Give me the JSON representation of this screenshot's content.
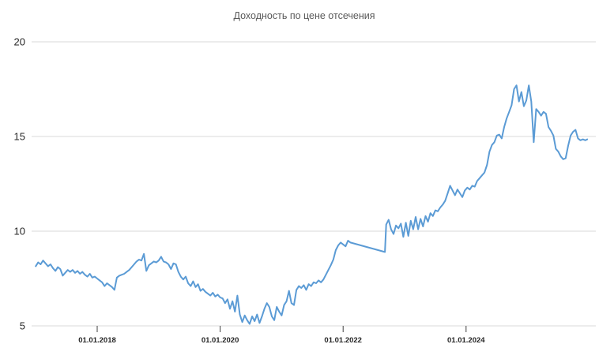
{
  "chart_data": {
    "type": "line",
    "title": "Доходность по цене отсечения",
    "xlabel": "",
    "ylabel": "",
    "ylim": [
      5,
      20
    ],
    "xlim": [
      2016.97,
      2026.1
    ],
    "grid": "horizontal",
    "legend": "none",
    "colors": {
      "line": "#5B9BD5",
      "title_text": "#595959",
      "axis_text": "#262626",
      "gridline": "#d9d9d9",
      "tickmark": "#404040",
      "background": "#ffffff"
    },
    "y_ticks": [
      {
        "value": 5,
        "label": "5"
      },
      {
        "value": 10,
        "label": "10"
      },
      {
        "value": 15,
        "label": "15"
      },
      {
        "value": 20,
        "label": "20"
      }
    ],
    "x_ticks": [
      {
        "value": 2018,
        "label": "01.01.2018"
      },
      {
        "value": 2020,
        "label": "01.01.2020"
      },
      {
        "value": 2022,
        "label": "01.01.2022"
      },
      {
        "value": 2024,
        "label": "01.01.2024"
      }
    ],
    "series": [
      {
        "name": "Доходность по цене отсечения",
        "x_format": "decimal_year",
        "points": [
          [
            2017.0,
            8.15
          ],
          [
            2017.04,
            8.35
          ],
          [
            2017.08,
            8.25
          ],
          [
            2017.12,
            8.45
          ],
          [
            2017.16,
            8.3
          ],
          [
            2017.2,
            8.15
          ],
          [
            2017.24,
            8.25
          ],
          [
            2017.28,
            8.05
          ],
          [
            2017.32,
            7.9
          ],
          [
            2017.36,
            8.1
          ],
          [
            2017.4,
            8.0
          ],
          [
            2017.44,
            7.65
          ],
          [
            2017.48,
            7.8
          ],
          [
            2017.52,
            7.95
          ],
          [
            2017.56,
            7.85
          ],
          [
            2017.6,
            7.95
          ],
          [
            2017.64,
            7.8
          ],
          [
            2017.68,
            7.9
          ],
          [
            2017.72,
            7.75
          ],
          [
            2017.76,
            7.85
          ],
          [
            2017.8,
            7.7
          ],
          [
            2017.84,
            7.6
          ],
          [
            2017.88,
            7.75
          ],
          [
            2017.92,
            7.55
          ],
          [
            2017.96,
            7.6
          ],
          [
            2018.0,
            7.5
          ],
          [
            2018.04,
            7.4
          ],
          [
            2018.08,
            7.3
          ],
          [
            2018.12,
            7.1
          ],
          [
            2018.16,
            7.25
          ],
          [
            2018.2,
            7.15
          ],
          [
            2018.24,
            7.05
          ],
          [
            2018.28,
            6.9
          ],
          [
            2018.32,
            7.55
          ],
          [
            2018.36,
            7.65
          ],
          [
            2018.4,
            7.7
          ],
          [
            2018.44,
            7.75
          ],
          [
            2018.48,
            7.85
          ],
          [
            2018.52,
            7.95
          ],
          [
            2018.56,
            8.1
          ],
          [
            2018.6,
            8.25
          ],
          [
            2018.64,
            8.4
          ],
          [
            2018.68,
            8.5
          ],
          [
            2018.72,
            8.45
          ],
          [
            2018.76,
            8.8
          ],
          [
            2018.8,
            7.9
          ],
          [
            2018.84,
            8.2
          ],
          [
            2018.88,
            8.3
          ],
          [
            2018.92,
            8.4
          ],
          [
            2018.96,
            8.35
          ],
          [
            2019.0,
            8.45
          ],
          [
            2019.04,
            8.65
          ],
          [
            2019.08,
            8.4
          ],
          [
            2019.12,
            8.35
          ],
          [
            2019.16,
            8.25
          ],
          [
            2019.2,
            8.0
          ],
          [
            2019.24,
            8.3
          ],
          [
            2019.28,
            8.25
          ],
          [
            2019.32,
            7.85
          ],
          [
            2019.36,
            7.6
          ],
          [
            2019.4,
            7.45
          ],
          [
            2019.44,
            7.6
          ],
          [
            2019.48,
            7.25
          ],
          [
            2019.52,
            7.1
          ],
          [
            2019.56,
            7.35
          ],
          [
            2019.6,
            7.05
          ],
          [
            2019.64,
            7.2
          ],
          [
            2019.68,
            6.85
          ],
          [
            2019.72,
            6.95
          ],
          [
            2019.76,
            6.8
          ],
          [
            2019.8,
            6.7
          ],
          [
            2019.84,
            6.6
          ],
          [
            2019.88,
            6.75
          ],
          [
            2019.92,
            6.55
          ],
          [
            2019.96,
            6.65
          ],
          [
            2020.0,
            6.5
          ],
          [
            2020.04,
            6.45
          ],
          [
            2020.08,
            6.2
          ],
          [
            2020.12,
            6.4
          ],
          [
            2020.16,
            5.9
          ],
          [
            2020.2,
            6.3
          ],
          [
            2020.24,
            5.75
          ],
          [
            2020.28,
            6.6
          ],
          [
            2020.32,
            5.6
          ],
          [
            2020.36,
            5.2
          ],
          [
            2020.4,
            5.55
          ],
          [
            2020.44,
            5.3
          ],
          [
            2020.48,
            5.1
          ],
          [
            2020.52,
            5.5
          ],
          [
            2020.56,
            5.25
          ],
          [
            2020.6,
            5.6
          ],
          [
            2020.64,
            5.15
          ],
          [
            2020.68,
            5.5
          ],
          [
            2020.72,
            5.9
          ],
          [
            2020.76,
            6.2
          ],
          [
            2020.8,
            6.0
          ],
          [
            2020.84,
            5.5
          ],
          [
            2020.88,
            5.3
          ],
          [
            2020.92,
            6.0
          ],
          [
            2020.96,
            5.75
          ],
          [
            2021.0,
            5.55
          ],
          [
            2021.04,
            6.1
          ],
          [
            2021.08,
            6.3
          ],
          [
            2021.12,
            6.85
          ],
          [
            2021.16,
            6.2
          ],
          [
            2021.2,
            6.1
          ],
          [
            2021.24,
            6.9
          ],
          [
            2021.28,
            7.1
          ],
          [
            2021.32,
            7.0
          ],
          [
            2021.36,
            7.15
          ],
          [
            2021.4,
            6.9
          ],
          [
            2021.44,
            7.2
          ],
          [
            2021.48,
            7.1
          ],
          [
            2021.52,
            7.3
          ],
          [
            2021.56,
            7.25
          ],
          [
            2021.6,
            7.4
          ],
          [
            2021.64,
            7.3
          ],
          [
            2021.68,
            7.45
          ],
          [
            2021.72,
            7.7
          ],
          [
            2021.76,
            7.95
          ],
          [
            2021.8,
            8.2
          ],
          [
            2021.84,
            8.5
          ],
          [
            2021.88,
            9.0
          ],
          [
            2021.92,
            9.25
          ],
          [
            2021.96,
            9.4
          ],
          [
            2022.0,
            9.3
          ],
          [
            2022.04,
            9.2
          ],
          [
            2022.08,
            9.5
          ],
          [
            2022.12,
            9.4
          ],
          [
            2022.68,
            8.9
          ],
          [
            2022.7,
            10.35
          ],
          [
            2022.74,
            10.6
          ],
          [
            2022.78,
            10.1
          ],
          [
            2022.82,
            9.85
          ],
          [
            2022.86,
            10.3
          ],
          [
            2022.9,
            10.15
          ],
          [
            2022.94,
            10.4
          ],
          [
            2022.98,
            9.7
          ],
          [
            2023.02,
            10.45
          ],
          [
            2023.06,
            9.75
          ],
          [
            2023.1,
            10.55
          ],
          [
            2023.14,
            10.1
          ],
          [
            2023.18,
            10.75
          ],
          [
            2023.22,
            10.1
          ],
          [
            2023.26,
            10.65
          ],
          [
            2023.3,
            10.25
          ],
          [
            2023.34,
            10.8
          ],
          [
            2023.38,
            10.5
          ],
          [
            2023.42,
            10.95
          ],
          [
            2023.46,
            10.8
          ],
          [
            2023.5,
            11.1
          ],
          [
            2023.54,
            11.05
          ],
          [
            2023.58,
            11.25
          ],
          [
            2023.62,
            11.4
          ],
          [
            2023.66,
            11.6
          ],
          [
            2023.7,
            12.0
          ],
          [
            2023.74,
            12.4
          ],
          [
            2023.78,
            12.15
          ],
          [
            2023.82,
            11.9
          ],
          [
            2023.86,
            12.2
          ],
          [
            2023.9,
            12.0
          ],
          [
            2023.94,
            11.8
          ],
          [
            2023.98,
            12.15
          ],
          [
            2024.02,
            12.3
          ],
          [
            2024.06,
            12.2
          ],
          [
            2024.1,
            12.4
          ],
          [
            2024.14,
            12.35
          ],
          [
            2024.18,
            12.65
          ],
          [
            2024.22,
            12.8
          ],
          [
            2024.26,
            12.95
          ],
          [
            2024.3,
            13.1
          ],
          [
            2024.34,
            13.5
          ],
          [
            2024.38,
            14.2
          ],
          [
            2024.42,
            14.55
          ],
          [
            2024.46,
            14.7
          ],
          [
            2024.5,
            15.05
          ],
          [
            2024.54,
            15.1
          ],
          [
            2024.58,
            14.9
          ],
          [
            2024.62,
            15.5
          ],
          [
            2024.66,
            15.95
          ],
          [
            2024.7,
            16.3
          ],
          [
            2024.74,
            16.65
          ],
          [
            2024.78,
            17.5
          ],
          [
            2024.82,
            17.7
          ],
          [
            2024.86,
            16.85
          ],
          [
            2024.9,
            17.35
          ],
          [
            2024.94,
            16.6
          ],
          [
            2024.98,
            16.9
          ],
          [
            2025.02,
            17.7
          ],
          [
            2025.06,
            16.85
          ],
          [
            2025.1,
            14.7
          ],
          [
            2025.14,
            16.45
          ],
          [
            2025.18,
            16.3
          ],
          [
            2025.22,
            16.1
          ],
          [
            2025.26,
            16.3
          ],
          [
            2025.3,
            16.2
          ],
          [
            2025.34,
            15.5
          ],
          [
            2025.38,
            15.3
          ],
          [
            2025.42,
            15.05
          ],
          [
            2025.46,
            14.35
          ],
          [
            2025.5,
            14.2
          ],
          [
            2025.54,
            13.95
          ],
          [
            2025.58,
            13.8
          ],
          [
            2025.62,
            13.85
          ],
          [
            2025.66,
            14.5
          ],
          [
            2025.7,
            15.05
          ],
          [
            2025.74,
            15.25
          ],
          [
            2025.78,
            15.35
          ],
          [
            2025.82,
            14.9
          ],
          [
            2025.86,
            14.8
          ],
          [
            2025.9,
            14.85
          ],
          [
            2025.94,
            14.8
          ],
          [
            2025.97,
            14.85
          ]
        ]
      }
    ]
  }
}
